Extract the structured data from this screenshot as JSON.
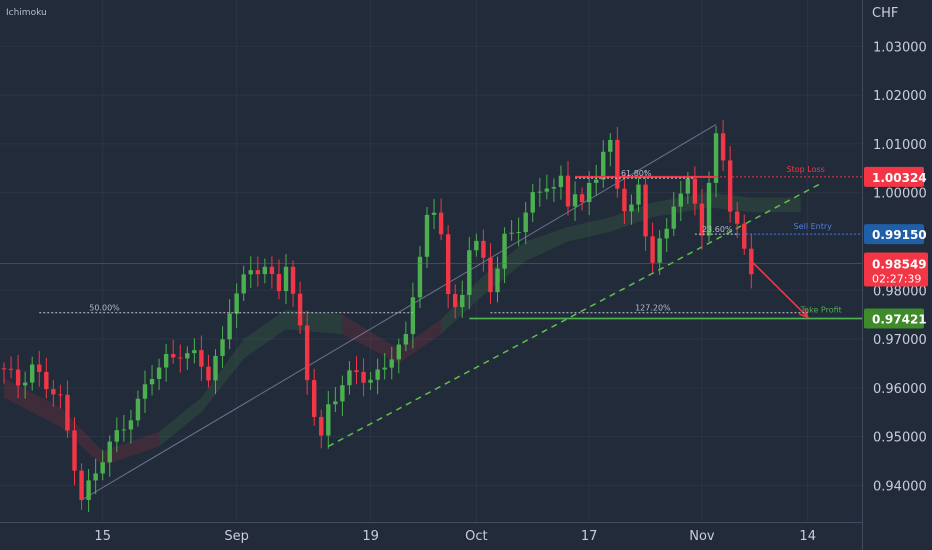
{
  "indicator_label": "Ichimoku",
  "currency_label": "CHF",
  "chart_data": {
    "type": "candlestick",
    "ylim": [
      0.9325,
      1.0395
    ],
    "y_ticks": [
      {
        "value": 1.03,
        "label": "1.03000"
      },
      {
        "value": 1.02,
        "label": "1.02000"
      },
      {
        "value": 1.01,
        "label": "1.01000"
      },
      {
        "value": 1.0,
        "label": "1.00000"
      },
      {
        "value": 0.98,
        "label": "0.98000"
      },
      {
        "value": 0.97,
        "label": "0.97000"
      },
      {
        "value": 0.96,
        "label": "0.96000"
      },
      {
        "value": 0.95,
        "label": "0.95000"
      },
      {
        "value": 0.94,
        "label": "0.94000"
      }
    ],
    "x_ticks": [
      {
        "bar": 14,
        "label": "15"
      },
      {
        "bar": 33,
        "label": "Sep"
      },
      {
        "bar": 52,
        "label": "19"
      },
      {
        "bar": 67,
        "label": "Oct"
      },
      {
        "bar": 83,
        "label": "17"
      },
      {
        "bar": 99,
        "label": "Nov"
      },
      {
        "bar": 114,
        "label": "14"
      }
    ],
    "anchors": [
      [
        0,
        0.963
      ],
      [
        2,
        0.961
      ],
      [
        4,
        0.965
      ],
      [
        6,
        0.96
      ],
      [
        8,
        0.957
      ],
      [
        9,
        0.951
      ],
      [
        10,
        0.945
      ],
      [
        11,
        0.938
      ],
      [
        13,
        0.942
      ],
      [
        15,
        0.948
      ],
      [
        17,
        0.953
      ],
      [
        19,
        0.957
      ],
      [
        21,
        0.962
      ],
      [
        23,
        0.966
      ],
      [
        25,
        0.968
      ],
      [
        27,
        0.966
      ],
      [
        29,
        0.962
      ],
      [
        31,
        0.97
      ],
      [
        32,
        0.977
      ],
      [
        33,
        0.98
      ],
      [
        35,
        0.983
      ],
      [
        37,
        0.985
      ],
      [
        39,
        0.981
      ],
      [
        40,
        0.986
      ],
      [
        41,
        0.978
      ],
      [
        42,
        0.971
      ],
      [
        43,
        0.962
      ],
      [
        44,
        0.955
      ],
      [
        45,
        0.95
      ],
      [
        46,
        0.957
      ],
      [
        48,
        0.96
      ],
      [
        50,
        0.963
      ],
      [
        52,
        0.962
      ],
      [
        54,
        0.965
      ],
      [
        56,
        0.967
      ],
      [
        57,
        0.97
      ],
      [
        58,
        0.98
      ],
      [
        59,
        0.988
      ],
      [
        60,
        0.995
      ],
      [
        61,
        0.996
      ],
      [
        62,
        0.992
      ],
      [
        63,
        0.978
      ],
      [
        64,
        0.975
      ],
      [
        65,
        0.98
      ],
      [
        66,
        0.99
      ],
      [
        67,
        0.99
      ],
      [
        68,
        0.986
      ],
      [
        69,
        0.98
      ],
      [
        70,
        0.984
      ],
      [
        71,
        0.99
      ],
      [
        73,
        0.994
      ],
      [
        75,
        0.999
      ],
      [
        77,
        1.001
      ],
      [
        78,
        1.0
      ],
      [
        79,
        1.003
      ],
      [
        80,
        0.999
      ],
      [
        81,
        1.001
      ],
      [
        82,
        0.997
      ],
      [
        83,
        1.001
      ],
      [
        84,
        1.003
      ],
      [
        85,
        1.008
      ],
      [
        86,
        1.01
      ],
      [
        87,
        1.002
      ],
      [
        88,
        0.998
      ],
      [
        89,
        0.997
      ],
      [
        90,
        1.0
      ],
      [
        91,
        0.991
      ],
      [
        92,
        0.986
      ],
      [
        93,
        0.99
      ],
      [
        94,
        0.993
      ],
      [
        95,
        0.999
      ],
      [
        96,
        1.0
      ],
      [
        97,
        1.001
      ],
      [
        98,
        0.997
      ],
      [
        99,
        0.992
      ],
      [
        100,
        1.002
      ],
      [
        101,
        1.012
      ],
      [
        102,
        1.008
      ],
      [
        103,
        0.997
      ],
      [
        104,
        0.992
      ],
      [
        105,
        0.987
      ],
      [
        106,
        0.984
      ]
    ],
    "ichimoku_cloud": [
      [
        0,
        0.962,
        0.958
      ],
      [
        8,
        0.956,
        0.952
      ],
      [
        14,
        0.947,
        0.944
      ],
      [
        22,
        0.951,
        0.948
      ],
      [
        28,
        0.958,
        0.955
      ],
      [
        34,
        0.97,
        0.966
      ],
      [
        40,
        0.976,
        0.972
      ],
      [
        48,
        0.975,
        0.971
      ],
      [
        56,
        0.968,
        0.965
      ],
      [
        62,
        0.974,
        0.971
      ],
      [
        68,
        0.983,
        0.979
      ],
      [
        74,
        0.99,
        0.986
      ],
      [
        80,
        0.993,
        0.99
      ],
      [
        86,
        0.995,
        0.992
      ],
      [
        92,
        0.998,
        0.995
      ],
      [
        100,
        1.0,
        0.997
      ],
      [
        106,
        0.999,
        0.996
      ],
      [
        113,
        0.999,
        0.996
      ]
    ],
    "trendline_upper": {
      "from": [
        11,
        0.937
      ],
      "to": [
        101,
        1.014
      ]
    },
    "trendline_lower": {
      "from": [
        46,
        0.948
      ],
      "to": [
        116,
        1.002
      ]
    },
    "fib_lines": [
      {
        "label": "61.80%",
        "value": 1.003,
        "from_bar": 81,
        "to_bar": 98
      },
      {
        "label": "23.60%",
        "value": 0.9915,
        "from_bar": 98,
        "to_bar": 104
      },
      {
        "label": "50.00%",
        "value": 0.9754,
        "from_bar": 5,
        "to_bar": 58
      },
      {
        "label": "127.20%",
        "value": 0.9754,
        "from_bar": 69,
        "to_bar": 114
      }
    ],
    "levels": [
      {
        "name": "Stop Loss",
        "value": 1.00324,
        "label": "1.00324",
        "color": "#f23645"
      },
      {
        "name": "Sell Entry",
        "value": 0.9915,
        "label": "0.99150",
        "color": "#2962ff"
      },
      {
        "name": "Take Profit",
        "value": 0.97421,
        "label": "0.97421",
        "color": "#4caf50"
      }
    ],
    "current_price": {
      "value": 0.98549,
      "label": "0.98549",
      "countdown": "02:27:39",
      "color": "#f23645"
    },
    "projection": {
      "from": [
        106,
        0.986
      ],
      "to": [
        114,
        0.9745
      ]
    }
  }
}
